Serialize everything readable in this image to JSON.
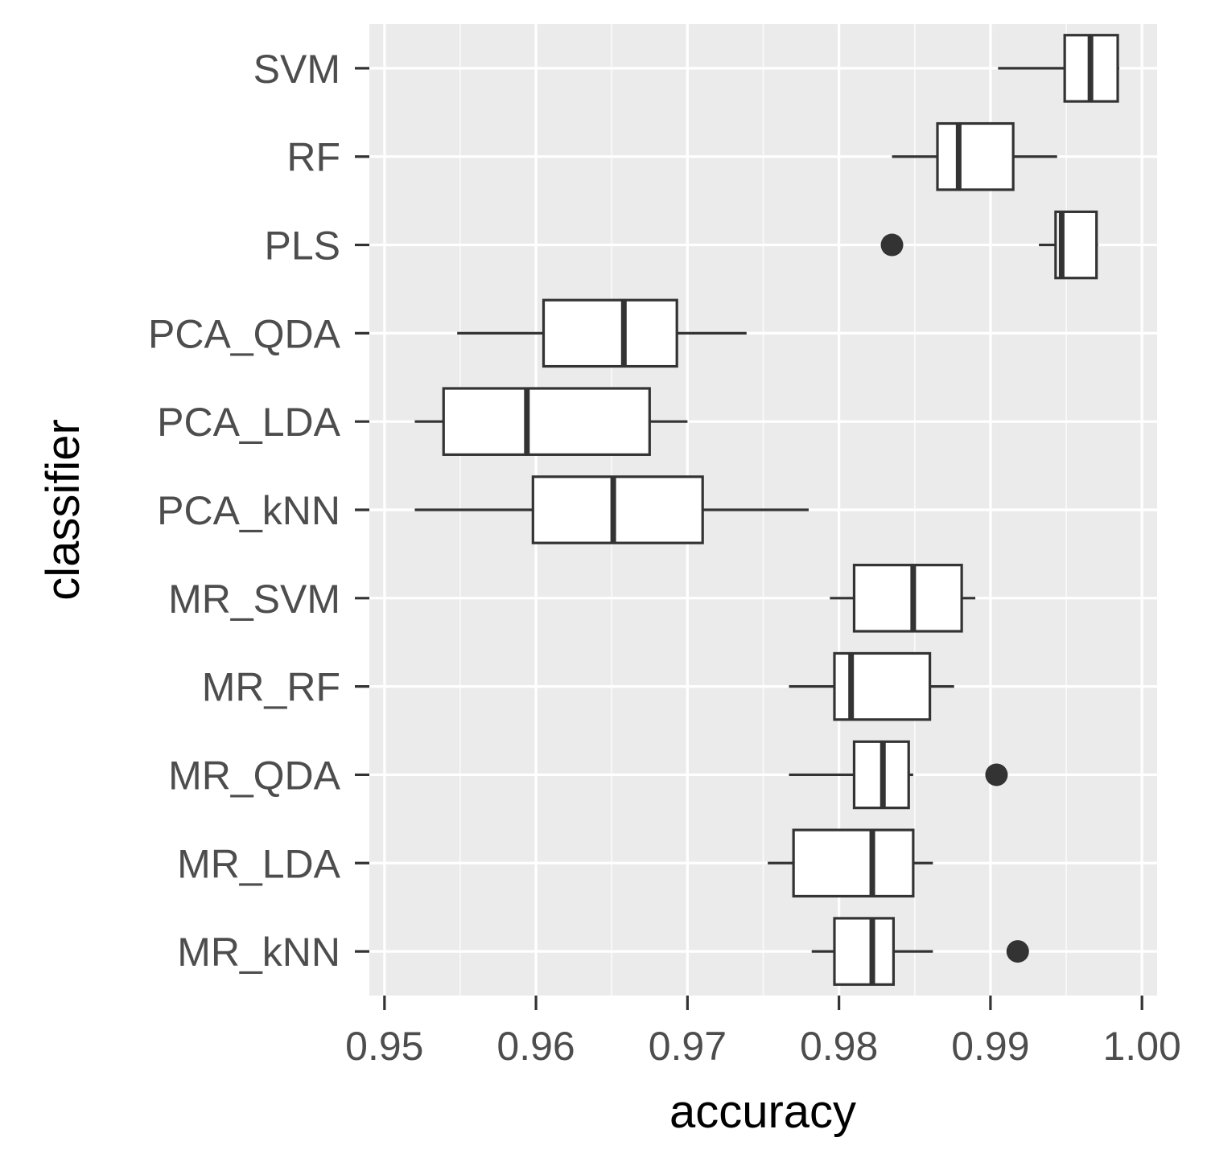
{
  "chart_data": {
    "type": "boxplot",
    "orientation": "horizontal",
    "xlabel": "accuracy",
    "ylabel": "classifier",
    "xlim": [
      0.949,
      1.001
    ],
    "x_ticks": [
      0.95,
      0.96,
      0.97,
      0.98,
      0.99,
      1.0
    ],
    "x_tick_labels": [
      "0.95",
      "0.96",
      "0.97",
      "0.98",
      "0.99",
      "1.00"
    ],
    "grid": true,
    "categories": [
      "SVM",
      "RF",
      "PLS",
      "PCA_QDA",
      "PCA_LDA",
      "PCA_kNN",
      "MR_SVM",
      "MR_RF",
      "MR_QDA",
      "MR_LDA",
      "MR_kNN"
    ],
    "series": [
      {
        "name": "SVM",
        "whisker_low": 0.9905,
        "q1": 0.9949,
        "median": 0.9966,
        "q3": 0.9984,
        "whisker_high": 0.9985,
        "outliers": []
      },
      {
        "name": "RF",
        "whisker_low": 0.9835,
        "q1": 0.9865,
        "median": 0.9879,
        "q3": 0.9915,
        "whisker_high": 0.9944,
        "outliers": []
      },
      {
        "name": "PLS",
        "whisker_low": 0.9932,
        "q1": 0.9943,
        "median": 0.9947,
        "q3": 0.997,
        "whisker_high": 0.9971,
        "outliers": [
          0.9835
        ]
      },
      {
        "name": "PCA_QDA",
        "whisker_low": 0.9548,
        "q1": 0.9605,
        "median": 0.9658,
        "q3": 0.9693,
        "whisker_high": 0.9739,
        "outliers": []
      },
      {
        "name": "PCA_LDA",
        "whisker_low": 0.952,
        "q1": 0.9539,
        "median": 0.9594,
        "q3": 0.9675,
        "whisker_high": 0.97,
        "outliers": []
      },
      {
        "name": "PCA_kNN",
        "whisker_low": 0.952,
        "q1": 0.9598,
        "median": 0.9651,
        "q3": 0.971,
        "whisker_high": 0.978,
        "outliers": []
      },
      {
        "name": "MR_SVM",
        "whisker_low": 0.9794,
        "q1": 0.981,
        "median": 0.9849,
        "q3": 0.9881,
        "whisker_high": 0.989,
        "outliers": []
      },
      {
        "name": "MR_RF",
        "whisker_low": 0.9767,
        "q1": 0.9797,
        "median": 0.9808,
        "q3": 0.986,
        "whisker_high": 0.9876,
        "outliers": []
      },
      {
        "name": "MR_QDA",
        "whisker_low": 0.9767,
        "q1": 0.981,
        "median": 0.9829,
        "q3": 0.9846,
        "whisker_high": 0.9849,
        "outliers": [
          0.9904
        ]
      },
      {
        "name": "MR_LDA",
        "whisker_low": 0.9753,
        "q1": 0.977,
        "median": 0.9822,
        "q3": 0.9849,
        "whisker_high": 0.9862,
        "outliers": []
      },
      {
        "name": "MR_kNN",
        "whisker_low": 0.9782,
        "q1": 0.9797,
        "median": 0.9822,
        "q3": 0.9836,
        "whisker_high": 0.9862,
        "outliers": [
          0.9918
        ]
      }
    ]
  }
}
